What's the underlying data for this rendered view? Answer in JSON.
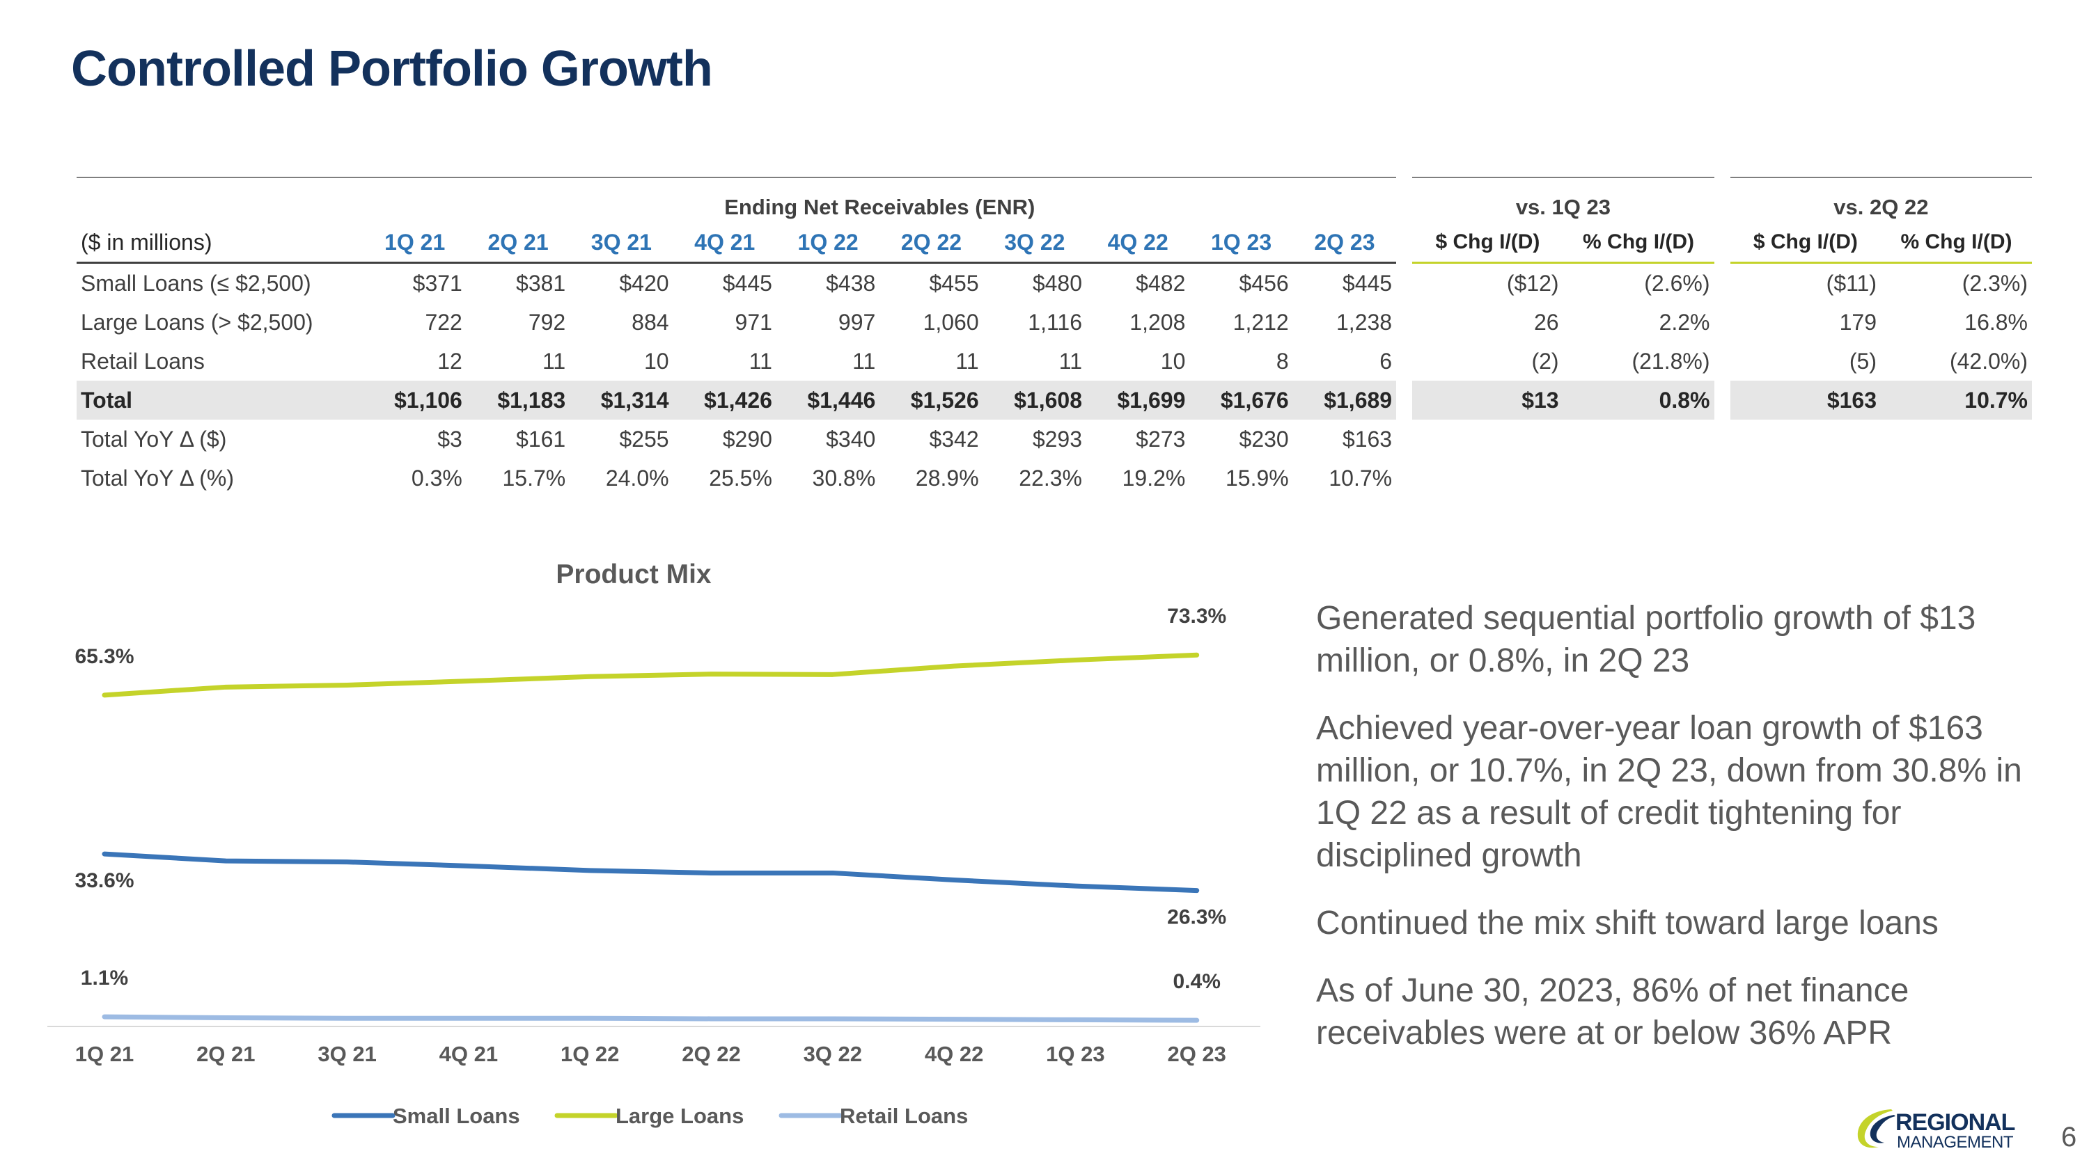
{
  "title": "Controlled Portfolio Growth",
  "table": {
    "group_enr": "Ending Net Receivables (ENR)",
    "group_vs_1q23": "vs. 1Q 23",
    "group_vs_2q22": "vs. 2Q 22",
    "label_header": "($ in millions)",
    "quarters": [
      "1Q 21",
      "2Q 21",
      "3Q 21",
      "4Q 21",
      "1Q 22",
      "2Q 22",
      "3Q 22",
      "4Q 22",
      "1Q 23",
      "2Q 23"
    ],
    "chg_headers": [
      "$ Chg I/(D)",
      "% Chg I/(D)",
      "$ Chg I/(D)",
      "% Chg I/(D)"
    ],
    "rows": [
      {
        "label": "Small Loans (≤ $2,500)",
        "values": [
          "$371",
          "$381",
          "$420",
          "$445",
          "$438",
          "$455",
          "$480",
          "$482",
          "$456",
          "$445"
        ],
        "chg": [
          "($12)",
          "(2.6%)",
          "($11)",
          "(2.3%)"
        ]
      },
      {
        "label": "Large Loans (> $2,500)",
        "values": [
          "722",
          "792",
          "884",
          "971",
          "997",
          "1,060",
          "1,116",
          "1,208",
          "1,212",
          "1,238"
        ],
        "chg": [
          "26",
          "2.2%",
          "179",
          "16.8%"
        ]
      },
      {
        "label": "Retail Loans",
        "values": [
          "12",
          "11",
          "10",
          "11",
          "11",
          "11",
          "11",
          "10",
          "8",
          "6"
        ],
        "chg": [
          "(2)",
          "(21.8%)",
          "(5)",
          "(42.0%)"
        ]
      },
      {
        "label": "Total",
        "values": [
          "$1,106",
          "$1,183",
          "$1,314",
          "$1,426",
          "$1,446",
          "$1,526",
          "$1,608",
          "$1,699",
          "$1,676",
          "$1,689"
        ],
        "chg": [
          "$13",
          "0.8%",
          "$163",
          "10.7%"
        ]
      },
      {
        "label": "Total YoY Δ ($)",
        "values": [
          "$3",
          "$161",
          "$255",
          "$290",
          "$340",
          "$342",
          "$293",
          "$273",
          "$230",
          "$163"
        ],
        "chg": []
      },
      {
        "label": "Total YoY Δ (%)",
        "values": [
          "0.3%",
          "15.7%",
          "24.0%",
          "25.5%",
          "30.8%",
          "28.9%",
          "22.3%",
          "19.2%",
          "15.9%",
          "10.7%"
        ],
        "chg": []
      }
    ]
  },
  "chart_data": {
    "type": "line",
    "title": "Product Mix",
    "categories": [
      "1Q 21",
      "2Q 21",
      "3Q 21",
      "4Q 21",
      "1Q 22",
      "2Q 22",
      "3Q 22",
      "4Q 22",
      "1Q 23",
      "2Q 23"
    ],
    "ylim": [
      0,
      80
    ],
    "series": [
      {
        "name": "Small Loans",
        "color": "#3a75b8",
        "values": [
          33.6,
          32.2,
          32.0,
          31.2,
          30.3,
          29.8,
          29.8,
          28.4,
          27.2,
          26.3
        ],
        "start_label": "33.6%",
        "end_label": "26.3%"
      },
      {
        "name": "Large Loans",
        "color": "#c4d32a",
        "values": [
          65.3,
          66.9,
          67.3,
          68.1,
          69.0,
          69.5,
          69.4,
          71.1,
          72.3,
          73.3
        ],
        "start_label": "65.3%",
        "end_label": "73.3%"
      },
      {
        "name": "Retail Loans",
        "color": "#9dbbe3",
        "values": [
          1.1,
          0.9,
          0.8,
          0.8,
          0.8,
          0.7,
          0.7,
          0.6,
          0.5,
          0.4
        ],
        "start_label": "1.1%",
        "end_label": "0.4%"
      }
    ],
    "legend": "bottom"
  },
  "bullets": [
    "Generated sequential portfolio growth of $13 million, or 0.8%, in 2Q 23",
    "Achieved year-over-year loan growth of $163 million, or 10.7%, in 2Q 23, down from 30.8% in 1Q 22 as a result of credit tightening for disciplined growth",
    "Continued the mix shift toward large loans",
    "As of June 30, 2023, 86% of net finance receivables were at or below 36% APR"
  ],
  "logo": {
    "line1": "REGIONAL",
    "line2": "MANAGEMENT"
  },
  "page_number": "6"
}
